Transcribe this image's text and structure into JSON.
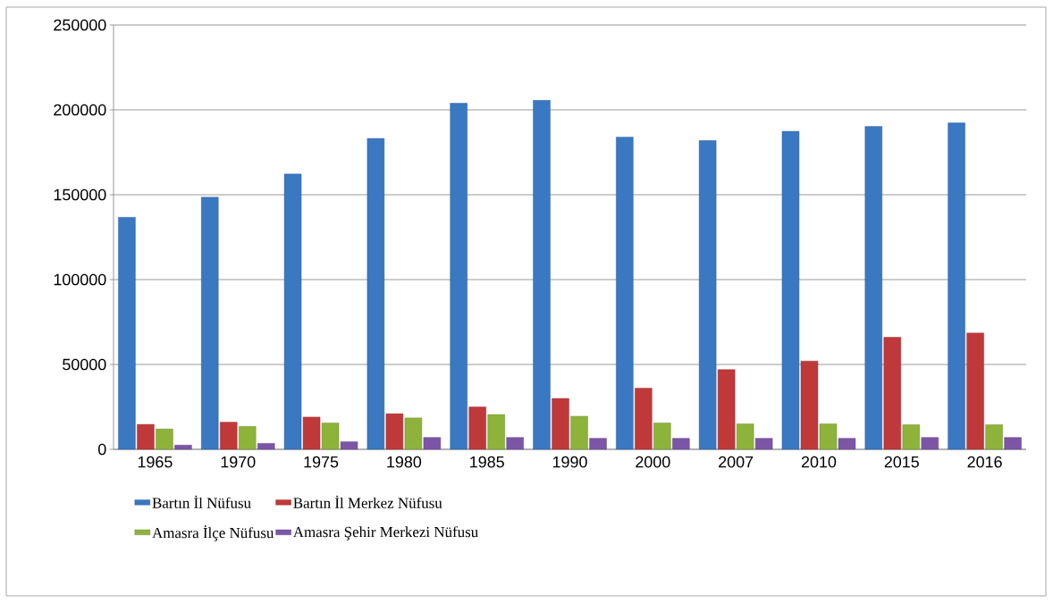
{
  "chart_data": {
    "type": "bar",
    "categories": [
      "1965",
      "1970",
      "1975",
      "1980",
      "1985",
      "1990",
      "2000",
      "2007",
      "2010",
      "2015",
      "2016"
    ],
    "series": [
      {
        "name": "Bartın İl Nüfusu",
        "color": "#3a78c2",
        "values": [
          136700,
          148600,
          162200,
          183200,
          203900,
          205600,
          184000,
          181900,
          187400,
          190200,
          192300
        ]
      },
      {
        "name": "Bartın İl Merkez Nüfusu",
        "color": "#c0393a",
        "values": [
          14700,
          16000,
          19000,
          21000,
          25000,
          30000,
          36000,
          47000,
          52000,
          66000,
          68500
        ]
      },
      {
        "name": "Amasra İlçe Nüfusu",
        "color": "#8db33a",
        "values": [
          12000,
          13500,
          15500,
          18500,
          20500,
          19500,
          15500,
          15000,
          15000,
          14500,
          14500
        ]
      },
      {
        "name": "Amasra Şehir Merkezi Nüfusu",
        "color": "#7c56a6",
        "values": [
          2500,
          3500,
          4500,
          7000,
          7000,
          6500,
          6500,
          6500,
          6500,
          7000,
          7000
        ]
      }
    ],
    "ylim": [
      0,
      250000
    ],
    "yticks": [
      0,
      50000,
      100000,
      150000,
      200000,
      250000
    ],
    "grid": "y",
    "legend": "bottom"
  }
}
